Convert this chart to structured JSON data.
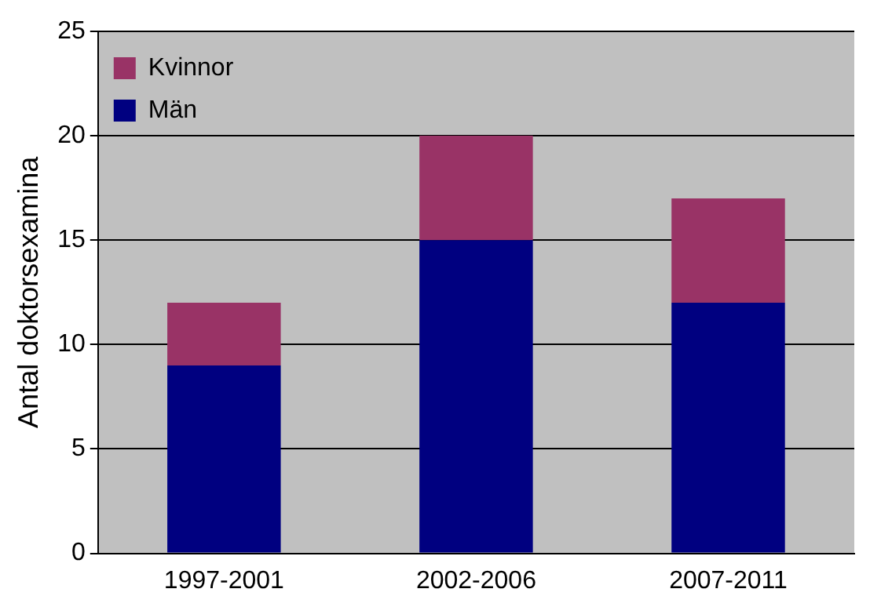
{
  "chart_data": {
    "type": "bar",
    "stacked": true,
    "ylabel": "Antal doktorsexamina",
    "categories": [
      "1997-2001",
      "2002-2006",
      "2007-2011"
    ],
    "series": [
      {
        "name": "Män",
        "color": "#000080",
        "values": [
          9,
          15,
          12
        ]
      },
      {
        "name": "Kvinnor",
        "color": "#993366",
        "values": [
          3,
          5,
          5
        ]
      }
    ],
    "ylim": [
      0,
      25
    ],
    "yticks": [
      0,
      5,
      10,
      15,
      20,
      25
    ],
    "grid": "y",
    "legend": "top left"
  }
}
